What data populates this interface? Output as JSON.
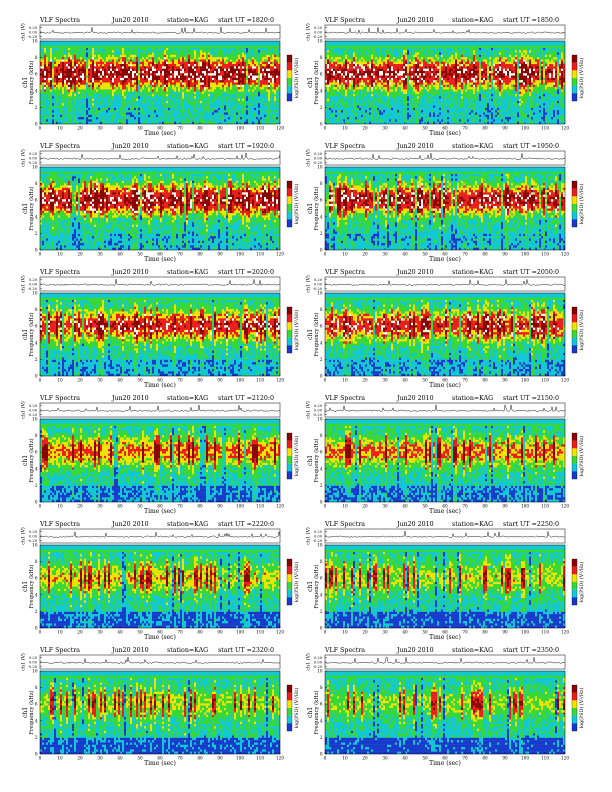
{
  "figure": {
    "panels": [
      {
        "header": {
          "left": "VLF Spectra",
          "date": "Jun20 2010",
          "station": "station=KAG",
          "start": "start  UT =1820:0"
        }
      },
      {
        "header": {
          "left": "VLF Spectra",
          "date": "Jun20 2010",
          "station": "station=KAG",
          "start": "start  UT =1850:0"
        }
      },
      {
        "header": {
          "left": "VLF Spectra",
          "date": "Jun20 2010",
          "station": "station=KAG",
          "start": "start  UT =1920:0"
        }
      },
      {
        "header": {
          "left": "VLF Spectra",
          "date": "Jun20 2010",
          "station": "station=KAG",
          "start": "start  UT =1950:0"
        }
      },
      {
        "header": {
          "left": "VLF Spectra",
          "date": "Jun20 2010",
          "station": "station=KAG",
          "start": "start  UT =2020:0"
        }
      },
      {
        "header": {
          "left": "VLF Spectra",
          "date": "Jun20 2010",
          "station": "station=KAG",
          "start": "start  UT =2050:0"
        }
      },
      {
        "header": {
          "left": "VLF Spectra",
          "date": "Jun20 2010",
          "station": "station=KAG",
          "start": "start  UT =2120:0"
        }
      },
      {
        "header": {
          "left": "VLF Spectra",
          "date": "Jun20 2010",
          "station": "station=KAG",
          "start": "start  UT =2150:0"
        }
      },
      {
        "header": {
          "left": "VLF Spectra",
          "date": "Jun20 2010",
          "station": "station=KAG",
          "start": "start  UT =2220:0"
        }
      },
      {
        "header": {
          "left": "VLF Spectra",
          "date": "Jun20 2010",
          "station": "station=KAG",
          "start": "start  UT =2250:0"
        }
      },
      {
        "header": {
          "left": "VLF Spectra",
          "date": "Jun20 2010",
          "station": "station=KAG",
          "start": "start  UT =2320:0"
        }
      },
      {
        "header": {
          "left": "VLF Spectra",
          "date": "Jun20 2010",
          "station": "station=KAG",
          "start": "start  UT =2350:0"
        }
      }
    ],
    "labels": {
      "waveform_ylabel": "ch1 (V)",
      "spectrogram_ylabel": "Frequency (kHz)",
      "channel_label": "ch1",
      "xlabel": "Time (sec)",
      "colorbar_label": "log(PSD) (V²/Hz)"
    },
    "colors": {
      "dark_red": "#8b0000",
      "red": "#ee1c1c",
      "yellow": "#f2e400",
      "green": "#38d838",
      "cyan": "#12c8d8",
      "blue": "#1838d0",
      "white": "#ffffff",
      "trace": "#000000"
    }
  },
  "chart_data": {
    "type": "heatmap",
    "kind": "spectrogram grid",
    "rows": 6,
    "columns": 2,
    "x_axis": {
      "label": "Time (sec)",
      "range": [
        0,
        120
      ],
      "ticks": [
        0,
        10,
        20,
        30,
        40,
        50,
        60,
        70,
        80,
        90,
        100,
        110,
        120
      ]
    },
    "y_axis_spectrogram": {
      "label": "Frequency (kHz)",
      "range": [
        0,
        10
      ],
      "ticks": [
        0,
        2,
        4,
        6,
        8,
        10
      ]
    },
    "y_axis_waveform": {
      "label": "ch1 (V)",
      "ticks": [
        "0.20",
        "0.00",
        "-0.20"
      ]
    },
    "colorbar": {
      "label": "log(PSD) (V²/Hz)",
      "scale": [
        "dark red",
        "red",
        "yellow",
        "green",
        "cyan",
        "blue"
      ]
    },
    "panel_intensity": [
      0.95,
      0.92,
      0.9,
      0.88,
      0.78,
      0.76,
      0.62,
      0.6,
      0.46,
      0.42,
      0.38,
      0.34
    ]
  }
}
